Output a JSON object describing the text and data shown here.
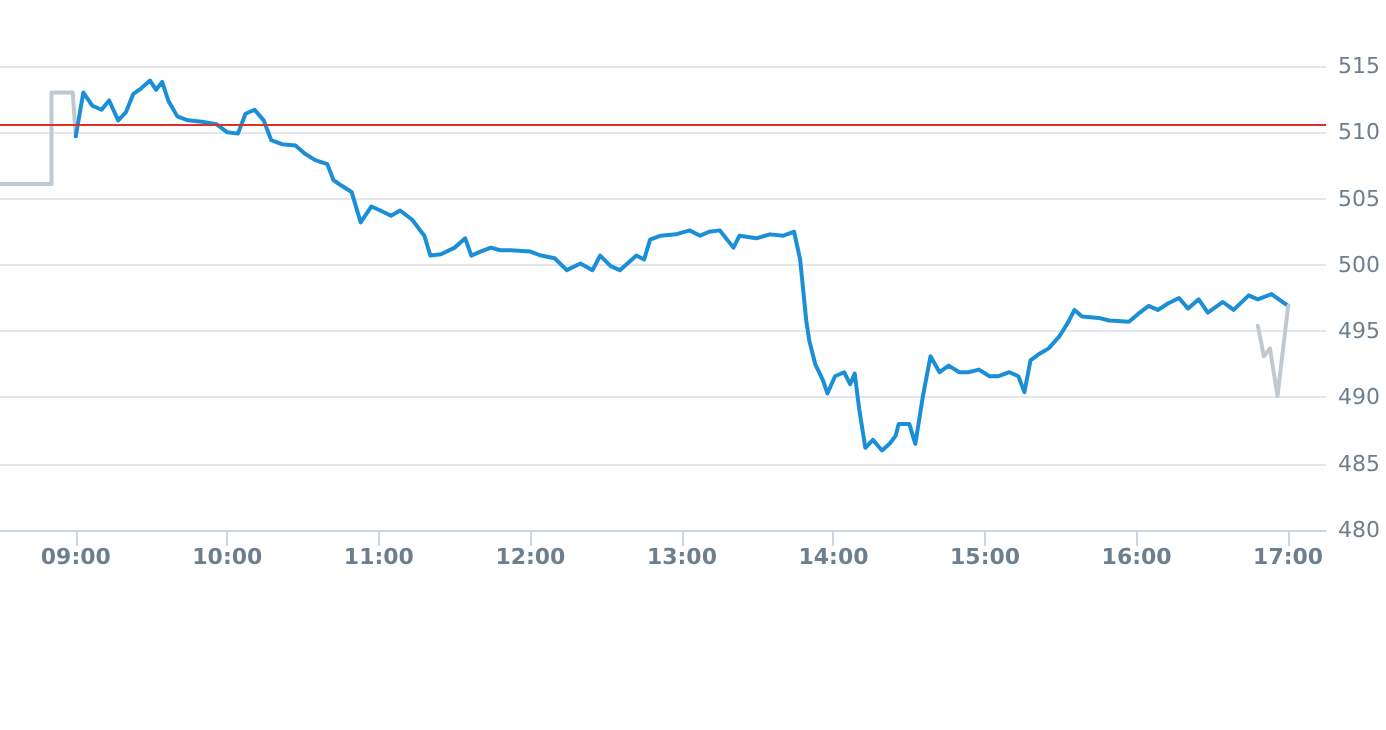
{
  "chart_data": {
    "type": "line",
    "xlim": [
      8.5,
      17.25
    ],
    "xticks": [
      {
        "value": 9,
        "label": "09:00"
      },
      {
        "value": 10,
        "label": "10:00"
      },
      {
        "value": 11,
        "label": "11:00"
      },
      {
        "value": 12,
        "label": "12:00"
      },
      {
        "value": 13,
        "label": "13:00"
      },
      {
        "value": 14,
        "label": "14:00"
      },
      {
        "value": 15,
        "label": "15:00"
      },
      {
        "value": 16,
        "label": "16:00"
      },
      {
        "value": 17,
        "label": "17:00"
      }
    ],
    "ylim": [
      480,
      515
    ],
    "yticks": [
      480,
      485,
      490,
      495,
      500,
      505,
      510,
      515
    ],
    "grid": "y",
    "marker": "none",
    "line_style": "solid",
    "ref_lines": [
      {
        "axis": "y",
        "value": 510.6,
        "color": "#d9322c"
      }
    ],
    "series": [
      {
        "color": "#c0c9d0",
        "x": [
          8.51,
          8.84,
          8.84,
          8.98,
          9.0
        ],
        "values": [
          506.1,
          506.1,
          513.0,
          513.0,
          509.7
        ]
      },
      {
        "color": "#1a8fd8",
        "x": [
          9.0,
          9.05,
          9.11,
          9.17,
          9.22,
          9.28,
          9.33,
          9.38,
          9.43,
          9.49,
          9.53,
          9.57,
          9.61,
          9.67,
          9.74,
          9.83,
          9.93,
          10.0,
          10.07,
          10.12,
          10.18,
          10.24,
          10.29,
          10.36,
          10.45,
          10.51,
          10.58,
          10.66,
          10.7,
          10.75,
          10.82,
          10.88,
          10.95,
          11.01,
          11.08,
          11.14,
          11.22,
          11.3,
          11.34,
          11.41,
          11.5,
          11.57,
          11.61,
          11.67,
          11.74,
          11.8,
          11.87,
          12.0,
          12.07,
          12.16,
          12.24,
          12.33,
          12.41,
          12.46,
          12.53,
          12.59,
          12.7,
          12.75,
          12.79,
          12.86,
          12.96,
          13.05,
          13.12,
          13.18,
          13.25,
          13.34,
          13.38,
          13.49,
          13.58,
          13.67,
          13.74,
          13.78,
          13.82,
          13.84,
          13.88,
          13.93,
          13.96,
          14.01,
          14.07,
          14.11,
          14.14,
          14.17,
          14.21,
          14.26,
          14.32,
          14.37,
          14.41,
          14.43,
          14.5,
          14.54,
          14.59,
          14.64,
          14.7,
          14.76,
          14.83,
          14.89,
          14.96,
          15.03,
          15.09,
          15.16,
          15.22,
          15.26,
          15.3,
          15.36,
          15.42,
          15.49,
          15.55,
          15.59,
          15.64,
          15.75,
          15.82,
          15.95,
          16.01,
          16.08,
          16.14,
          16.21,
          16.28,
          16.34,
          16.41,
          16.47,
          16.57,
          16.64,
          16.74,
          16.8,
          16.89,
          17.0
        ],
        "values": [
          509.7,
          513.0,
          512.0,
          511.7,
          512.4,
          510.9,
          511.5,
          512.9,
          513.3,
          513.9,
          513.2,
          513.8,
          512.4,
          511.2,
          510.9,
          510.8,
          510.6,
          510.0,
          509.9,
          511.4,
          511.7,
          510.9,
          509.4,
          509.1,
          509.0,
          508.4,
          507.9,
          507.6,
          506.4,
          506.0,
          505.5,
          503.2,
          504.4,
          504.1,
          503.7,
          504.1,
          503.4,
          502.2,
          500.7,
          500.8,
          501.3,
          502.0,
          500.7,
          501.0,
          501.3,
          501.1,
          501.1,
          501.0,
          500.7,
          500.5,
          499.6,
          500.1,
          499.6,
          500.7,
          499.9,
          499.6,
          500.7,
          500.4,
          501.9,
          502.2,
          502.3,
          502.6,
          502.2,
          502.5,
          502.6,
          501.3,
          502.2,
          502.0,
          502.3,
          502.2,
          502.5,
          500.4,
          495.8,
          494.3,
          492.5,
          491.3,
          490.3,
          491.6,
          491.9,
          491.0,
          491.8,
          489.1,
          486.2,
          486.8,
          486.0,
          486.5,
          487.1,
          488.0,
          488.0,
          486.5,
          490.1,
          493.1,
          491.9,
          492.4,
          491.9,
          491.9,
          492.1,
          491.6,
          491.6,
          491.9,
          491.6,
          490.4,
          492.8,
          493.3,
          493.7,
          494.6,
          495.7,
          496.6,
          496.1,
          496.0,
          495.8,
          495.7,
          496.3,
          496.9,
          496.6,
          497.1,
          497.5,
          496.7,
          497.4,
          496.4,
          497.2,
          496.6,
          497.7,
          497.4,
          497.8,
          496.9
        ]
      },
      {
        "color": "#c0c9d0",
        "x": [
          16.8,
          16.84,
          16.88,
          16.93,
          17.0
        ],
        "values": [
          495.4,
          493.1,
          493.7,
          490.1,
          496.9
        ]
      }
    ]
  }
}
